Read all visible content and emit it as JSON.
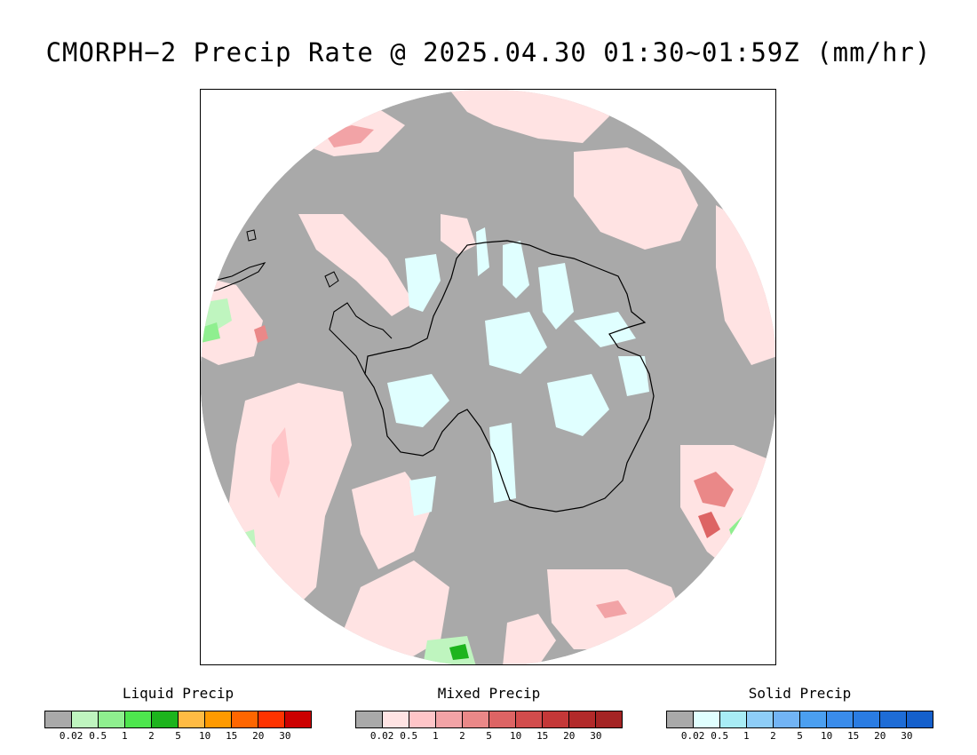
{
  "title": "CMORPH−2 Precip Rate @ 2025.04.30 01:30~01:59Z (mm/hr)",
  "map": {
    "projection": "south-polar-stereographic",
    "region": "Antarctica and Southern Ocean",
    "no_precip_color": "#a9a9a9",
    "coastline_color": "#000000"
  },
  "legends": [
    {
      "id": "liquid",
      "title": "Liquid Precip",
      "ticks": [
        "0.02",
        "0.5",
        "1",
        "2",
        "5",
        "10",
        "15",
        "20",
        "30"
      ],
      "colors": [
        "#a9a9a9",
        "#bff5bf",
        "#8fef8f",
        "#4ee64e",
        "#1db41d",
        "#ffbb44",
        "#ff9a00",
        "#ff6600",
        "#ff3300",
        "#cc0000"
      ]
    },
    {
      "id": "mixed",
      "title": "Mixed Precip",
      "ticks": [
        "0.02",
        "0.5",
        "1",
        "2",
        "5",
        "10",
        "15",
        "20",
        "30"
      ],
      "colors": [
        "#a9a9a9",
        "#ffe3e3",
        "#ffc5c8",
        "#f2a3a6",
        "#ea8888",
        "#dd6464",
        "#d24c4c",
        "#c43838",
        "#b22a2a",
        "#a42424"
      ]
    },
    {
      "id": "solid",
      "title": "Solid Precip",
      "ticks": [
        "0.02",
        "0.5",
        "1",
        "2",
        "5",
        "10",
        "15",
        "20",
        "30"
      ],
      "colors": [
        "#a9a9a9",
        "#e0ffff",
        "#a8ecf5",
        "#8ecdf7",
        "#72b4f5",
        "#4b9ff0",
        "#3a8ceb",
        "#2a7ce2",
        "#1e6cd6",
        "#1560cc"
      ]
    }
  ]
}
